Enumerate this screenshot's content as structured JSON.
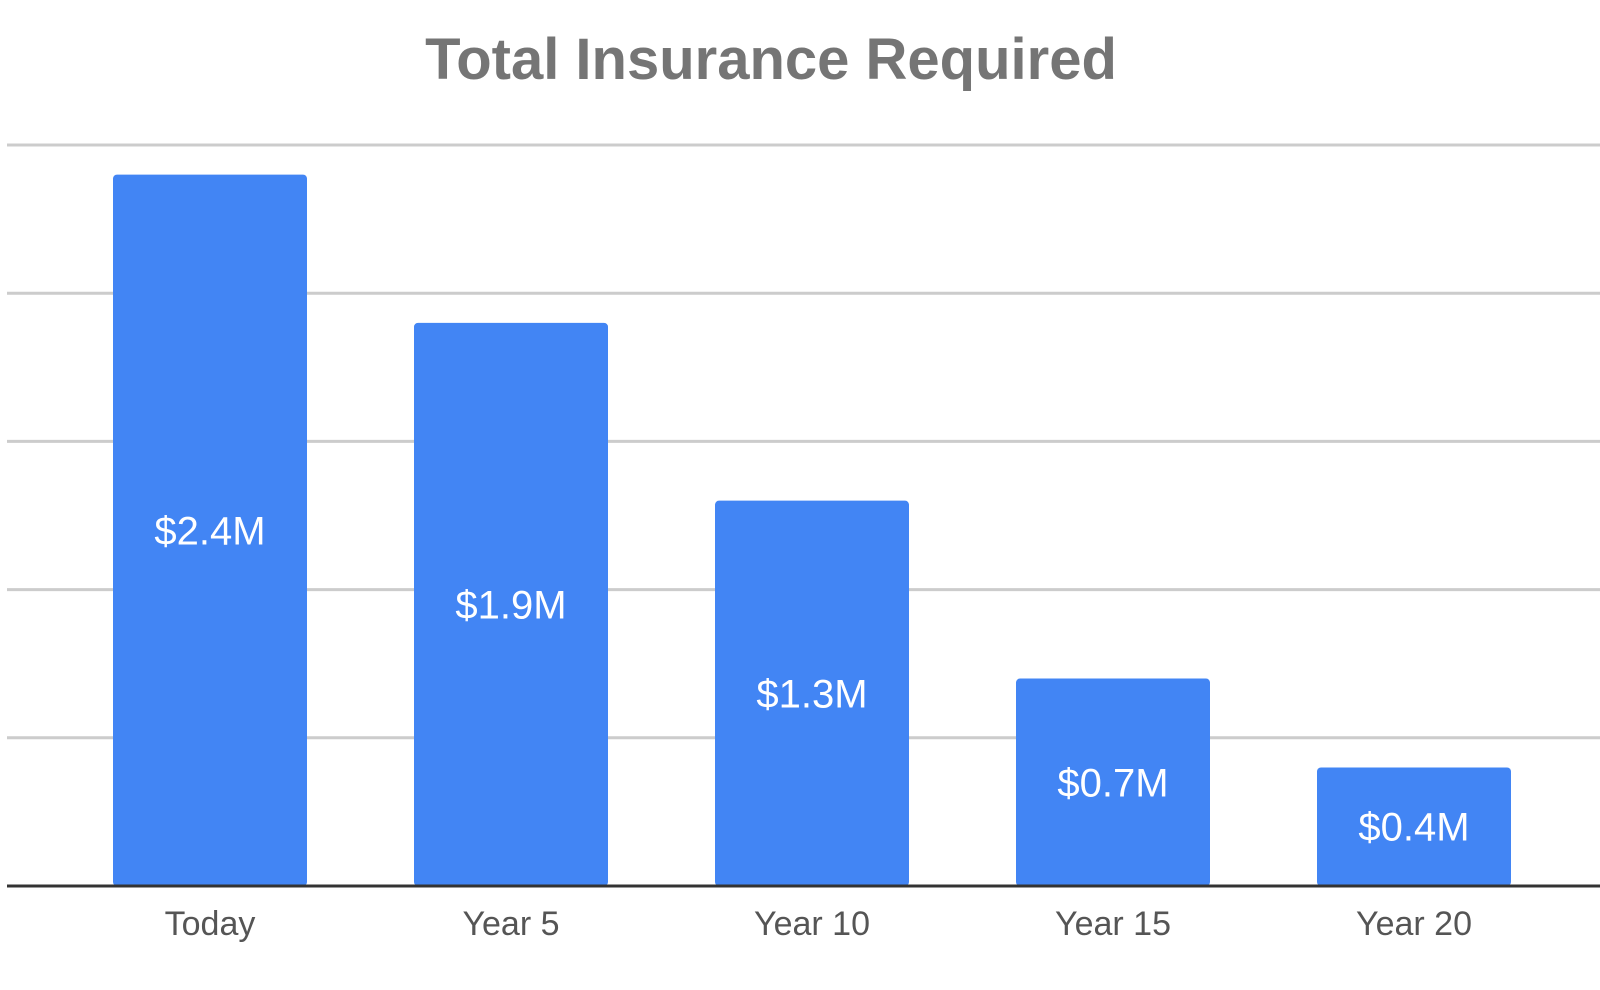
{
  "chart_data": {
    "type": "bar",
    "title": "Total Insurance Required",
    "xlabel": "",
    "ylabel": "",
    "categories": [
      "Today",
      "Year 5",
      "Year 10",
      "Year 15",
      "Year 20"
    ],
    "values": [
      2.4,
      1.9,
      1.3,
      0.7,
      0.4
    ],
    "data_labels": [
      "$2.4M",
      "$1.9M",
      "$1.3M",
      "$0.7M",
      "$0.4M"
    ],
    "ylim": [
      0,
      2.5
    ],
    "gridlines": true,
    "legend": "none",
    "bar_color": "#4285f4"
  }
}
